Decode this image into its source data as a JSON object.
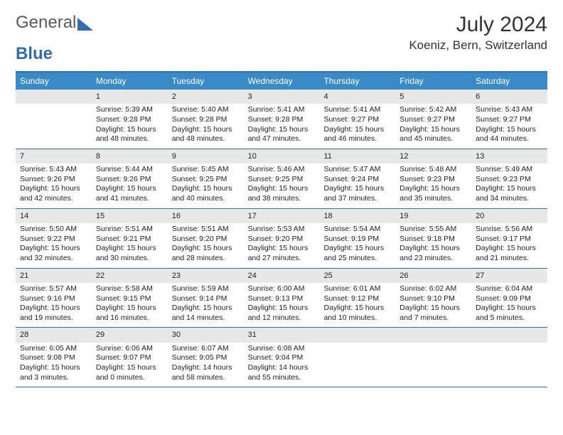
{
  "header": {
    "logo_part1": "General",
    "logo_part2": "Blue",
    "title": "July 2024",
    "location": "Koeniz, Bern, Switzerland"
  },
  "colors": {
    "header_bar": "#3a8ac6",
    "border": "#2f6fad",
    "daynum_bg": "#e8e8e8",
    "text": "#222222",
    "background": "#ffffff"
  },
  "calendar": {
    "day_names": [
      "Sunday",
      "Monday",
      "Tuesday",
      "Wednesday",
      "Thursday",
      "Friday",
      "Saturday"
    ],
    "fontsize_header": 12,
    "fontsize_cell": 10.5,
    "weeks": [
      [
        {
          "day": "",
          "sunrise": "",
          "sunset": "",
          "daylight1": "",
          "daylight2": ""
        },
        {
          "day": "1",
          "sunrise": "Sunrise: 5:39 AM",
          "sunset": "Sunset: 9:28 PM",
          "daylight1": "Daylight: 15 hours",
          "daylight2": "and 48 minutes."
        },
        {
          "day": "2",
          "sunrise": "Sunrise: 5:40 AM",
          "sunset": "Sunset: 9:28 PM",
          "daylight1": "Daylight: 15 hours",
          "daylight2": "and 48 minutes."
        },
        {
          "day": "3",
          "sunrise": "Sunrise: 5:41 AM",
          "sunset": "Sunset: 9:28 PM",
          "daylight1": "Daylight: 15 hours",
          "daylight2": "and 47 minutes."
        },
        {
          "day": "4",
          "sunrise": "Sunrise: 5:41 AM",
          "sunset": "Sunset: 9:27 PM",
          "daylight1": "Daylight: 15 hours",
          "daylight2": "and 46 minutes."
        },
        {
          "day": "5",
          "sunrise": "Sunrise: 5:42 AM",
          "sunset": "Sunset: 9:27 PM",
          "daylight1": "Daylight: 15 hours",
          "daylight2": "and 45 minutes."
        },
        {
          "day": "6",
          "sunrise": "Sunrise: 5:43 AM",
          "sunset": "Sunset: 9:27 PM",
          "daylight1": "Daylight: 15 hours",
          "daylight2": "and 44 minutes."
        }
      ],
      [
        {
          "day": "7",
          "sunrise": "Sunrise: 5:43 AM",
          "sunset": "Sunset: 9:26 PM",
          "daylight1": "Daylight: 15 hours",
          "daylight2": "and 42 minutes."
        },
        {
          "day": "8",
          "sunrise": "Sunrise: 5:44 AM",
          "sunset": "Sunset: 9:26 PM",
          "daylight1": "Daylight: 15 hours",
          "daylight2": "and 41 minutes."
        },
        {
          "day": "9",
          "sunrise": "Sunrise: 5:45 AM",
          "sunset": "Sunset: 9:25 PM",
          "daylight1": "Daylight: 15 hours",
          "daylight2": "and 40 minutes."
        },
        {
          "day": "10",
          "sunrise": "Sunrise: 5:46 AM",
          "sunset": "Sunset: 9:25 PM",
          "daylight1": "Daylight: 15 hours",
          "daylight2": "and 38 minutes."
        },
        {
          "day": "11",
          "sunrise": "Sunrise: 5:47 AM",
          "sunset": "Sunset: 9:24 PM",
          "daylight1": "Daylight: 15 hours",
          "daylight2": "and 37 minutes."
        },
        {
          "day": "12",
          "sunrise": "Sunrise: 5:48 AM",
          "sunset": "Sunset: 9:23 PM",
          "daylight1": "Daylight: 15 hours",
          "daylight2": "and 35 minutes."
        },
        {
          "day": "13",
          "sunrise": "Sunrise: 5:49 AM",
          "sunset": "Sunset: 9:23 PM",
          "daylight1": "Daylight: 15 hours",
          "daylight2": "and 34 minutes."
        }
      ],
      [
        {
          "day": "14",
          "sunrise": "Sunrise: 5:50 AM",
          "sunset": "Sunset: 9:22 PM",
          "daylight1": "Daylight: 15 hours",
          "daylight2": "and 32 minutes."
        },
        {
          "day": "15",
          "sunrise": "Sunrise: 5:51 AM",
          "sunset": "Sunset: 9:21 PM",
          "daylight1": "Daylight: 15 hours",
          "daylight2": "and 30 minutes."
        },
        {
          "day": "16",
          "sunrise": "Sunrise: 5:51 AM",
          "sunset": "Sunset: 9:20 PM",
          "daylight1": "Daylight: 15 hours",
          "daylight2": "and 28 minutes."
        },
        {
          "day": "17",
          "sunrise": "Sunrise: 5:53 AM",
          "sunset": "Sunset: 9:20 PM",
          "daylight1": "Daylight: 15 hours",
          "daylight2": "and 27 minutes."
        },
        {
          "day": "18",
          "sunrise": "Sunrise: 5:54 AM",
          "sunset": "Sunset: 9:19 PM",
          "daylight1": "Daylight: 15 hours",
          "daylight2": "and 25 minutes."
        },
        {
          "day": "19",
          "sunrise": "Sunrise: 5:55 AM",
          "sunset": "Sunset: 9:18 PM",
          "daylight1": "Daylight: 15 hours",
          "daylight2": "and 23 minutes."
        },
        {
          "day": "20",
          "sunrise": "Sunrise: 5:56 AM",
          "sunset": "Sunset: 9:17 PM",
          "daylight1": "Daylight: 15 hours",
          "daylight2": "and 21 minutes."
        }
      ],
      [
        {
          "day": "21",
          "sunrise": "Sunrise: 5:57 AM",
          "sunset": "Sunset: 9:16 PM",
          "daylight1": "Daylight: 15 hours",
          "daylight2": "and 19 minutes."
        },
        {
          "day": "22",
          "sunrise": "Sunrise: 5:58 AM",
          "sunset": "Sunset: 9:15 PM",
          "daylight1": "Daylight: 15 hours",
          "daylight2": "and 16 minutes."
        },
        {
          "day": "23",
          "sunrise": "Sunrise: 5:59 AM",
          "sunset": "Sunset: 9:14 PM",
          "daylight1": "Daylight: 15 hours",
          "daylight2": "and 14 minutes."
        },
        {
          "day": "24",
          "sunrise": "Sunrise: 6:00 AM",
          "sunset": "Sunset: 9:13 PM",
          "daylight1": "Daylight: 15 hours",
          "daylight2": "and 12 minutes."
        },
        {
          "day": "25",
          "sunrise": "Sunrise: 6:01 AM",
          "sunset": "Sunset: 9:12 PM",
          "daylight1": "Daylight: 15 hours",
          "daylight2": "and 10 minutes."
        },
        {
          "day": "26",
          "sunrise": "Sunrise: 6:02 AM",
          "sunset": "Sunset: 9:10 PM",
          "daylight1": "Daylight: 15 hours",
          "daylight2": "and 7 minutes."
        },
        {
          "day": "27",
          "sunrise": "Sunrise: 6:04 AM",
          "sunset": "Sunset: 9:09 PM",
          "daylight1": "Daylight: 15 hours",
          "daylight2": "and 5 minutes."
        }
      ],
      [
        {
          "day": "28",
          "sunrise": "Sunrise: 6:05 AM",
          "sunset": "Sunset: 9:08 PM",
          "daylight1": "Daylight: 15 hours",
          "daylight2": "and 3 minutes."
        },
        {
          "day": "29",
          "sunrise": "Sunrise: 6:06 AM",
          "sunset": "Sunset: 9:07 PM",
          "daylight1": "Daylight: 15 hours",
          "daylight2": "and 0 minutes."
        },
        {
          "day": "30",
          "sunrise": "Sunrise: 6:07 AM",
          "sunset": "Sunset: 9:05 PM",
          "daylight1": "Daylight: 14 hours",
          "daylight2": "and 58 minutes."
        },
        {
          "day": "31",
          "sunrise": "Sunrise: 6:08 AM",
          "sunset": "Sunset: 9:04 PM",
          "daylight1": "Daylight: 14 hours",
          "daylight2": "and 55 minutes."
        },
        {
          "day": "",
          "sunrise": "",
          "sunset": "",
          "daylight1": "",
          "daylight2": ""
        },
        {
          "day": "",
          "sunrise": "",
          "sunset": "",
          "daylight1": "",
          "daylight2": ""
        },
        {
          "day": "",
          "sunrise": "",
          "sunset": "",
          "daylight1": "",
          "daylight2": ""
        }
      ]
    ]
  }
}
